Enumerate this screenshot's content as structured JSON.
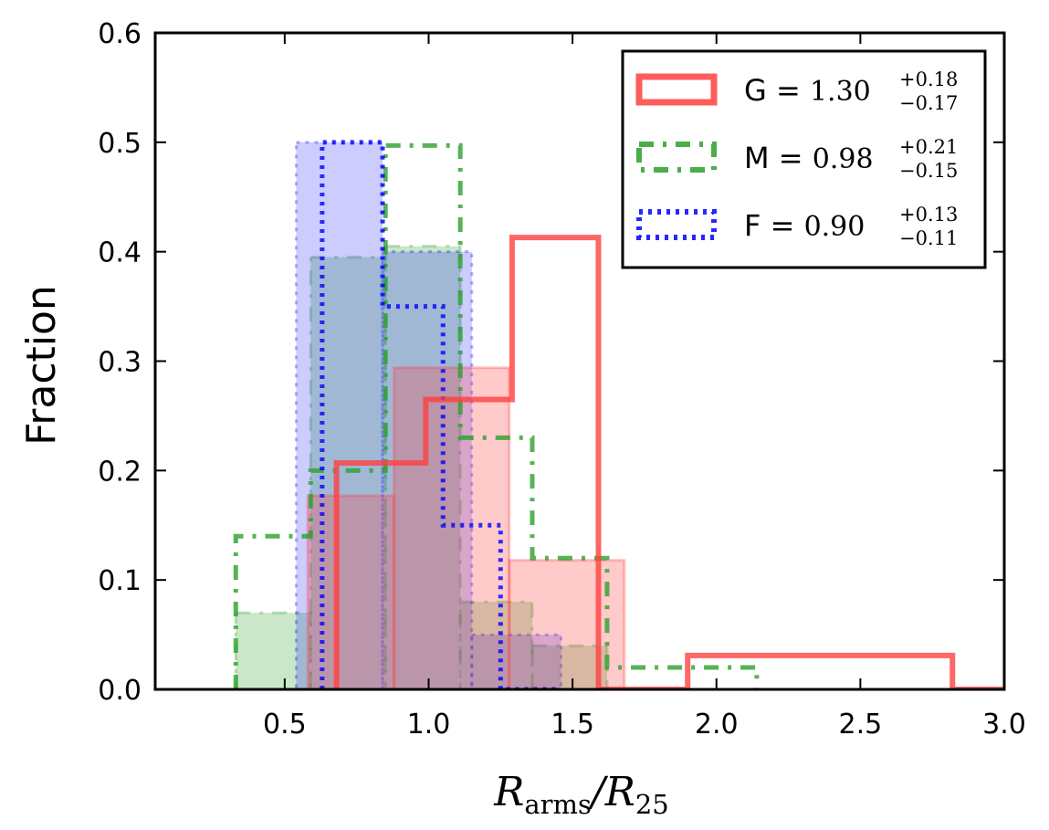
{
  "chart_data": {
    "type": "histogram",
    "xlabel": {
      "main": "R",
      "sub1": "arms",
      "slash": "/R",
      "sub2": "25"
    },
    "ylabel": "Fraction",
    "xlim": [
      0.05,
      3.0
    ],
    "ylim": [
      0.0,
      0.6
    ],
    "xticks": [
      0.5,
      1.0,
      1.5,
      2.0,
      2.5,
      3.0
    ],
    "xtick_labels": [
      "0.5",
      "1.0",
      "1.5",
      "2.0",
      "2.5",
      "3.0"
    ],
    "yticks": [
      0.0,
      0.1,
      0.2,
      0.3,
      0.4,
      0.5,
      0.6
    ],
    "ytick_labels": [
      "0.0",
      "0.1",
      "0.2",
      "0.3",
      "0.4",
      "0.5",
      "0.6"
    ],
    "legend_position": "top-right",
    "series": [
      {
        "name": "G",
        "value": "1.30",
        "plus": "+0.18",
        "minus": "−0.17",
        "color": "#ff4040",
        "style": "solid",
        "edges": [
          0.68,
          0.99,
          1.29,
          1.59,
          1.9,
          2.21,
          2.51,
          2.82,
          3.12
        ],
        "step_values": [
          0.207,
          0.265,
          0.413,
          0.0,
          0.031,
          0.031,
          0.031,
          0.0
        ],
        "shaded_edges": [
          0.58,
          0.88,
          1.28,
          1.68
        ],
        "shaded_values": [
          0.177,
          0.294,
          0.118
        ]
      },
      {
        "name": "M",
        "value": "0.98",
        "plus": "+0.21",
        "minus": "−0.15",
        "color": "#2ca02c",
        "style": "dashdot",
        "edges": [
          0.33,
          0.59,
          0.85,
          1.11,
          1.36,
          1.62,
          1.88,
          2.14
        ],
        "step_values": [
          0.14,
          0.2,
          0.497,
          0.23,
          0.12,
          0.02,
          0.02
        ],
        "shaded_edges": [
          0.33,
          0.59,
          0.85,
          1.11,
          1.36,
          1.62
        ],
        "shaded_values": [
          0.07,
          0.395,
          0.405,
          0.08,
          0.04
        ]
      },
      {
        "name": "F",
        "value": "0.90",
        "plus": "+0.13",
        "minus": "−0.11",
        "color": "#0000ff",
        "style": "dotted",
        "edges": [
          0.63,
          0.84,
          1.05,
          1.25,
          1.46
        ],
        "step_values": [
          0.5,
          0.35,
          0.15,
          0.0
        ],
        "shaded_edges": [
          0.54,
          0.84,
          1.15,
          1.46
        ],
        "shaded_values": [
          0.5,
          0.4,
          0.05
        ]
      }
    ]
  }
}
